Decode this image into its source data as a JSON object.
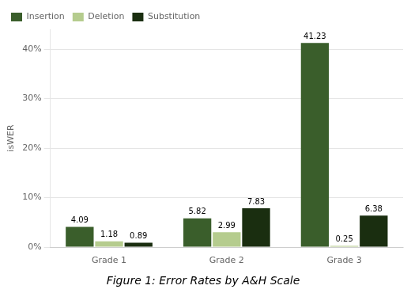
{
  "chart_data": {
    "type": "bar",
    "title": "Figure 1: Error Rates by A&H Scale",
    "y_label": "isWER",
    "categories": [
      "Grade 1",
      "Grade 2",
      "Grade 3"
    ],
    "series": [
      {
        "name": "Insertion",
        "color": "#3a5e2b",
        "values": [
          4.09,
          5.82,
          41.23
        ]
      },
      {
        "name": "Deletion",
        "color": "#b5cc8e",
        "values": [
          1.18,
          2.99,
          0.25
        ]
      },
      {
        "name": "Substitution",
        "color": "#1a2e10",
        "values": [
          0.89,
          7.83,
          6.38
        ]
      }
    ],
    "ylim": [
      0,
      44
    ],
    "yticks": [
      {
        "value": 0,
        "label": "0%"
      },
      {
        "value": 10,
        "label": "10%"
      },
      {
        "value": 20,
        "label": "20%"
      },
      {
        "value": 30,
        "label": "30%"
      },
      {
        "value": 40,
        "label": "40%"
      }
    ],
    "grid": true,
    "legend": "upper left",
    "data_labels": true
  }
}
